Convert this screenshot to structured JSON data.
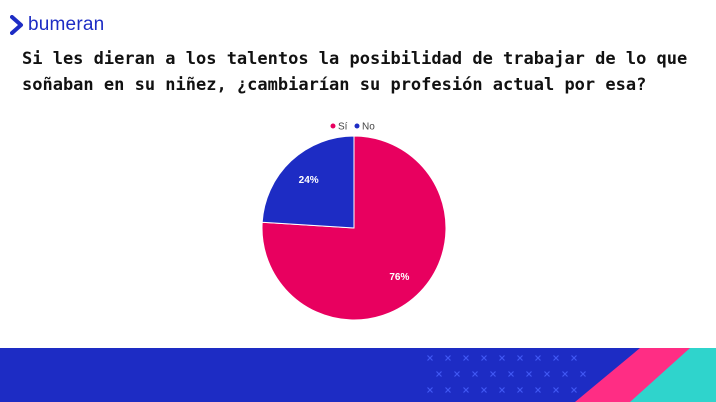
{
  "brand": {
    "name": "bumeran",
    "color": "#1d2cc4"
  },
  "title": "Si les dieran a los talentos la posibilidad de trabajar de lo que soñaban en su niñez, ¿cambiarían su profesión actual por esa?",
  "chart_data": {
    "type": "pie",
    "title": "",
    "legend_position": "top",
    "slices": [
      {
        "name": "Sí",
        "value": 76,
        "label": "76%",
        "color": "#e8005f"
      },
      {
        "name": "No",
        "value": 24,
        "label": "24%",
        "color": "#1d2cc4"
      }
    ]
  },
  "colors": {
    "footer_blue": "#1d2cc4",
    "footer_teal": "#2fd4cc",
    "footer_pink": "#ff2d84"
  }
}
